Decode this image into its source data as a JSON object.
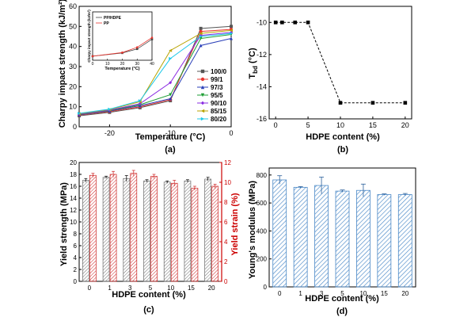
{
  "colors": {
    "axis": "#000000",
    "red_axis": "#cc0000",
    "hatch_gray": "#6b6b6b",
    "hatch_red": "#cc2222",
    "hatch_blue": "#4a88c7",
    "dashed": "#000000"
  },
  "chart_data": [
    {
      "type": "line",
      "panel_label": "(a)",
      "xlabel": "Temperature (°C)",
      "ylabel": "Charpy impact strength (kJ/m²)",
      "xlim": [
        -25,
        0
      ],
      "ylim": [
        0,
        60
      ],
      "xticks": [
        "-20",
        "-10",
        "0"
      ],
      "yticks": [
        "0",
        "10",
        "20",
        "30",
        "40",
        "50",
        "60"
      ],
      "legend_position": "right",
      "x": [
        -25,
        -20,
        -15,
        -10,
        -5,
        0
      ],
      "series": [
        {
          "name": "100/0",
          "color": "#555555",
          "marker": "square",
          "values": [
            5.5,
            7.2,
            9.5,
            13.0,
            49.0,
            50.0
          ]
        },
        {
          "name": "99/1",
          "color": "#e8352e",
          "marker": "circle",
          "values": [
            5.8,
            7.6,
            10.0,
            13.5,
            47.5,
            48.5
          ]
        },
        {
          "name": "97/3",
          "color": "#2a3fb8",
          "marker": "triangle-up",
          "values": [
            6.0,
            7.9,
            10.5,
            14.0,
            40.5,
            44.0
          ]
        },
        {
          "name": "95/5",
          "color": "#1e9e35",
          "marker": "triangle-down",
          "values": [
            6.2,
            8.1,
            11.0,
            16.0,
            44.0,
            46.0
          ]
        },
        {
          "name": "90/10",
          "color": "#8a2be2",
          "marker": "diamond",
          "values": [
            6.3,
            8.3,
            11.5,
            22.0,
            45.5,
            47.0
          ]
        },
        {
          "name": "85/15",
          "color": "#b8a300",
          "marker": "triangle-left",
          "values": [
            6.5,
            8.6,
            12.5,
            38.0,
            46.5,
            48.0
          ]
        },
        {
          "name": "80/20",
          "color": "#1ec8e8",
          "marker": "triangle-right",
          "values": [
            6.7,
            8.8,
            13.0,
            34.0,
            45.0,
            46.5
          ]
        }
      ],
      "inset": {
        "xlabel": "Temperature (°C)",
        "ylabel": "Charpy impact strength (kJ/m²)",
        "xlim": [
          0,
          40
        ],
        "ylim": [
          0,
          12
        ],
        "xticks": [
          "0",
          "10",
          "20",
          "30",
          "40"
        ],
        "legend_position": "top-left",
        "x": [
          0,
          20,
          30,
          40
        ],
        "series": [
          {
            "name": "PP/HDPE",
            "color": "#444444",
            "values": [
              1.0,
              1.8,
              2.8,
              5.2
            ]
          },
          {
            "name": "PP",
            "color": "#e8352e",
            "values": [
              1.0,
              1.9,
              3.2,
              5.6
            ]
          }
        ]
      }
    },
    {
      "type": "line",
      "panel_label": "(b)",
      "xlabel": "HDPE content (%)",
      "ylabel": "T_bd (°C)",
      "ylabel_main": "T",
      "ylabel_sub": "bd",
      "ylabel_unit": " (°C)",
      "xlim": [
        -1,
        21
      ],
      "ylim": [
        -16,
        -9
      ],
      "xticks": [
        "0",
        "5",
        "10",
        "15",
        "20"
      ],
      "yticks": [
        "-10",
        "-12",
        "-14",
        "-16"
      ],
      "x": [
        0,
        1,
        3,
        5,
        10,
        15,
        20
      ],
      "values": [
        -10,
        -10,
        -10,
        -10,
        -15,
        -15,
        -15
      ]
    },
    {
      "type": "bar",
      "panel_label": "(c)",
      "xlabel": "HDPE content (%)",
      "ylabel": "Yield strength (MPa)",
      "ylabel_right": "Yield strain (%)",
      "categories": [
        "0",
        "1",
        "3",
        "5",
        "10",
        "15",
        "20"
      ],
      "ylim": [
        0,
        20
      ],
      "ylim_right": [
        0,
        12
      ],
      "yticks": [
        "0",
        "2",
        "4",
        "6",
        "8",
        "10",
        "12",
        "14",
        "16",
        "18",
        "20"
      ],
      "yticks_right": [
        "0",
        "2",
        "4",
        "6",
        "8",
        "10",
        "12"
      ],
      "series": [
        {
          "name": "Yield strength",
          "axis": "left",
          "values": [
            17.0,
            17.5,
            17.3,
            16.9,
            16.7,
            16.9,
            17.2
          ],
          "errors": [
            0.3,
            0.2,
            0.5,
            0.2,
            0.2,
            0.2,
            0.3
          ]
        },
        {
          "name": "Yield strain",
          "axis": "right",
          "values": [
            10.7,
            10.8,
            10.9,
            10.6,
            9.9,
            9.4,
            9.6
          ],
          "errors": [
            0.2,
            0.3,
            0.3,
            0.2,
            0.3,
            0.2,
            0.2
          ]
        }
      ]
    },
    {
      "type": "bar",
      "panel_label": "(d)",
      "xlabel": "HDPE content (%)",
      "ylabel": "Young's modulus (MPa)",
      "categories": [
        "0",
        "1",
        "3",
        "5",
        "10",
        "15",
        "20"
      ],
      "ylim": [
        0,
        850
      ],
      "yticks": [
        "0",
        "200",
        "400",
        "600",
        "800"
      ],
      "values": [
        765,
        712,
        725,
        685,
        690,
        660,
        660
      ],
      "errors": [
        30,
        5,
        60,
        8,
        45,
        5,
        8
      ]
    }
  ]
}
